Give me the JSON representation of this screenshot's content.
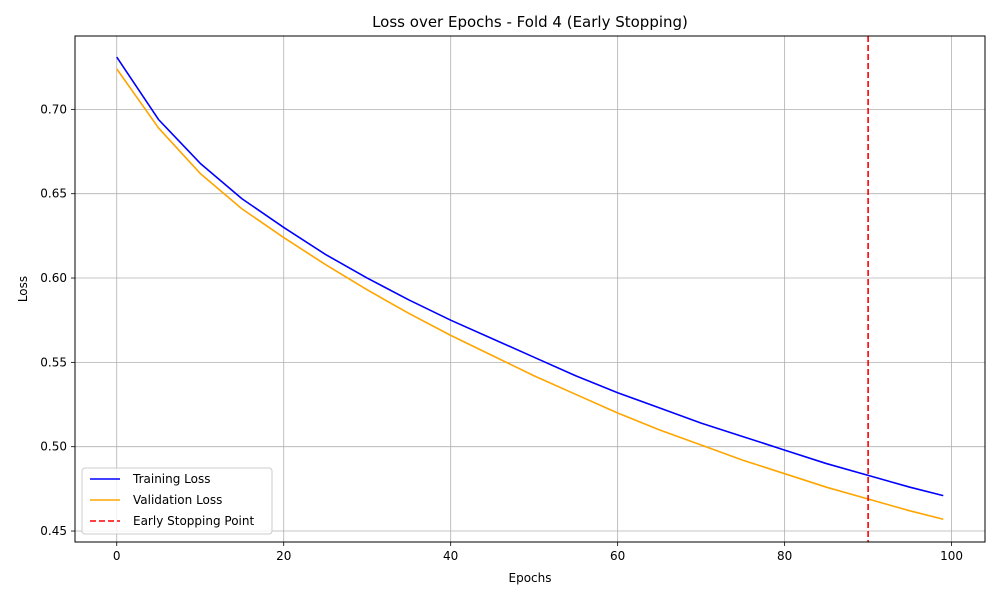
{
  "chart_data": {
    "type": "line",
    "title": "Loss over Epochs - Fold 4 (Early Stopping)",
    "xlabel": "Epochs",
    "ylabel": "Loss",
    "xlim": [
      -5,
      104
    ],
    "ylim": [
      0.4435,
      0.7435
    ],
    "xticks": [
      0,
      20,
      40,
      60,
      80,
      100
    ],
    "yticks": [
      0.45,
      0.5,
      0.55,
      0.6,
      0.65,
      0.7
    ],
    "xtick_labels": [
      "0",
      "20",
      "40",
      "60",
      "80",
      "100"
    ],
    "ytick_labels": [
      "0.45",
      "0.50",
      "0.55",
      "0.60",
      "0.65",
      "0.70"
    ],
    "grid": true,
    "legend_position": "lower-left",
    "series": [
      {
        "name": "Training Loss",
        "color": "#0000ff",
        "x": [
          0,
          5,
          10,
          15,
          20,
          25,
          30,
          35,
          40,
          45,
          50,
          55,
          60,
          65,
          70,
          75,
          80,
          85,
          90,
          95,
          99
        ],
        "values": [
          0.731,
          0.694,
          0.668,
          0.647,
          0.63,
          0.614,
          0.6,
          0.587,
          0.575,
          0.564,
          0.553,
          0.542,
          0.532,
          0.523,
          0.514,
          0.506,
          0.498,
          0.49,
          0.483,
          0.476,
          0.471
        ]
      },
      {
        "name": "Validation Loss",
        "color": "#ffa500",
        "x": [
          0,
          5,
          10,
          15,
          20,
          25,
          30,
          35,
          40,
          45,
          50,
          55,
          60,
          65,
          70,
          75,
          80,
          85,
          90,
          95,
          99
        ],
        "values": [
          0.724,
          0.689,
          0.662,
          0.641,
          0.624,
          0.608,
          0.593,
          0.579,
          0.566,
          0.554,
          0.542,
          0.531,
          0.52,
          0.51,
          0.501,
          0.492,
          0.484,
          0.476,
          0.469,
          0.462,
          0.457
        ]
      }
    ],
    "vlines": [
      {
        "name": "Early Stopping Point",
        "x": 90,
        "color": "#ff0000",
        "style": "dashed"
      }
    ]
  }
}
